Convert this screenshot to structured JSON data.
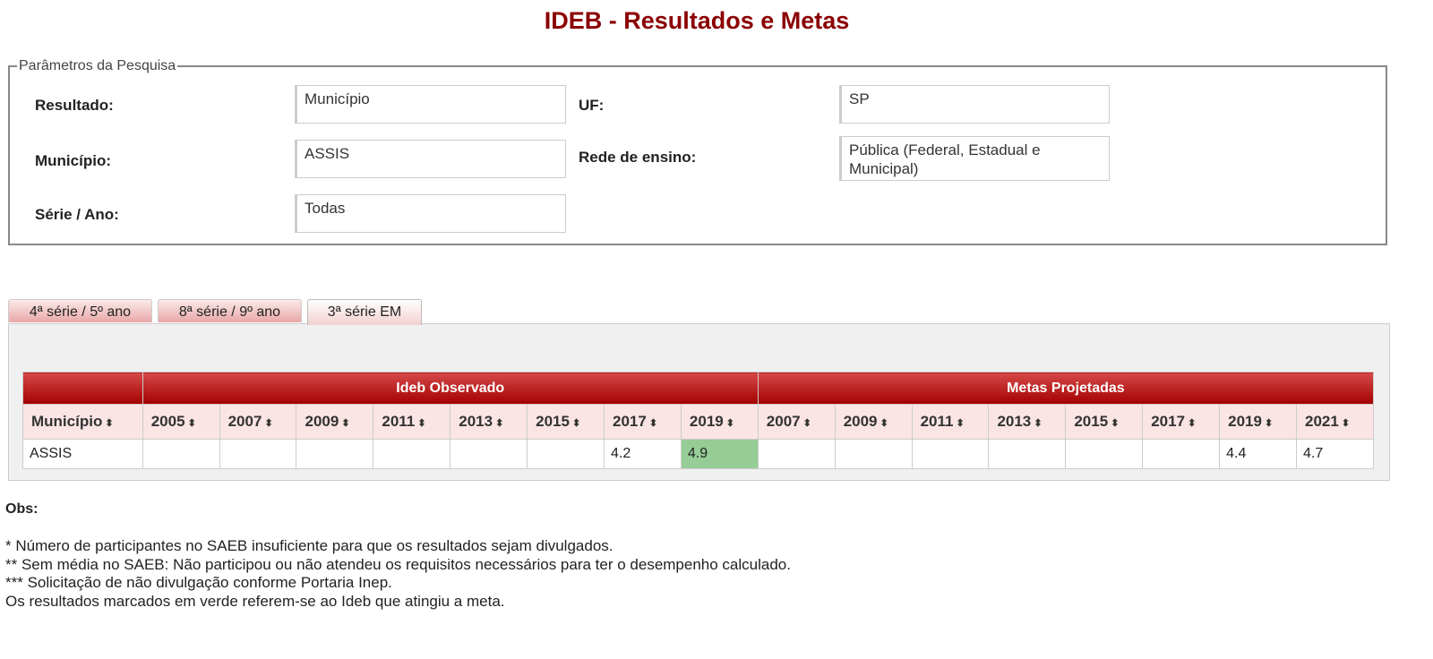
{
  "title": "IDEB - Resultados e Metas",
  "params": {
    "legend": "Parâmetros da Pesquisa",
    "resultado_label": "Resultado:",
    "resultado": "Município",
    "uf_label": "UF:",
    "uf": "SP",
    "municipio_label": "Município:",
    "municipio": "ASSIS",
    "rede_label": "Rede de ensino:",
    "rede": "Pública (Federal, Estadual e Municipal)",
    "serie_label": "Série / Ano:",
    "serie": "Todas"
  },
  "tabs": [
    "4ª série / 5º ano",
    "8ª série / 9º ano",
    "3ª série EM"
  ],
  "active_tab": 2,
  "table": {
    "groups": [
      "Ideb Observado",
      "Metas Projetadas"
    ],
    "columns": [
      "Município",
      "2005",
      "2007",
      "2009",
      "2011",
      "2013",
      "2015",
      "2017",
      "2019",
      "2007",
      "2009",
      "2011",
      "2013",
      "2015",
      "2017",
      "2019",
      "2021"
    ],
    "sort_icon": "sort-arrows-icon",
    "rows": [
      [
        "ASSIS",
        "",
        "",
        "",
        "",
        "",
        "",
        "4.2",
        "4.9",
        "",
        "",
        "",
        "",
        "",
        "",
        "4.4",
        "4.7"
      ]
    ],
    "highlight_color": "#96cc96",
    "highlighted": [
      [
        0,
        8
      ]
    ]
  },
  "obs": {
    "title": "Obs:",
    "lines": [
      "* Número de participantes no SAEB insuficiente para que os resultados sejam divulgados.",
      "** Sem média no SAEB: Não participou ou não atendeu os requisitos necessários para ter o desempenho calculado.",
      "*** Solicitação de não divulgação conforme Portaria Inep.",
      "Os resultados marcados em verde referem-se ao Ideb que atingiu a meta."
    ]
  }
}
